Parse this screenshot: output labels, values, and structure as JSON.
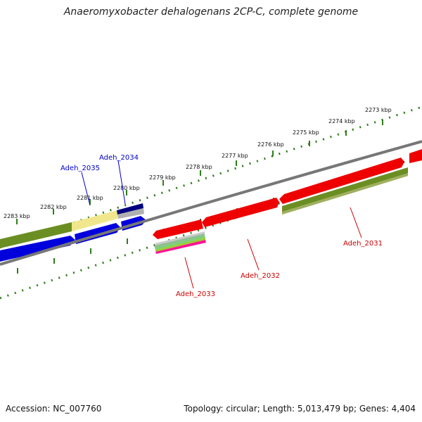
{
  "title": "Anaeromyxobacter dehalogenans 2CP-C, complete genome",
  "footer": {
    "accession": "Accession: NC_007760",
    "summary": "Topology: circular; Length: 5,013,479 bp; Genes: 4,404"
  },
  "colors": {
    "scale": "#2e7d1a",
    "backbone": "#777777",
    "forward_cds": "#0000dd",
    "reverse_cds": "#ee0000",
    "olive_feature": "#6b8e23",
    "yellow_feature": "#f0e68c",
    "navy_feature": "#000080",
    "forward_label": "#0000cc",
    "reverse_label": "#cc0000"
  },
  "scale_ticks": [
    "2273 kbp",
    "2274 kbp",
    "2275 kbp",
    "2276 kbp",
    "2277 kbp",
    "2278 kbp",
    "2279 kbp",
    "2280 kbp",
    "2281 kbp",
    "2282 kbp",
    "2283 kbp"
  ],
  "gene_labels": [
    {
      "text": "Adeh_2034",
      "strand": "forward"
    },
    {
      "text": "Adeh_2035",
      "strand": "forward"
    },
    {
      "text": "Adeh_2031",
      "strand": "reverse"
    },
    {
      "text": "Adeh_2032",
      "strand": "reverse"
    },
    {
      "text": "Adeh_2033",
      "strand": "reverse"
    }
  ]
}
